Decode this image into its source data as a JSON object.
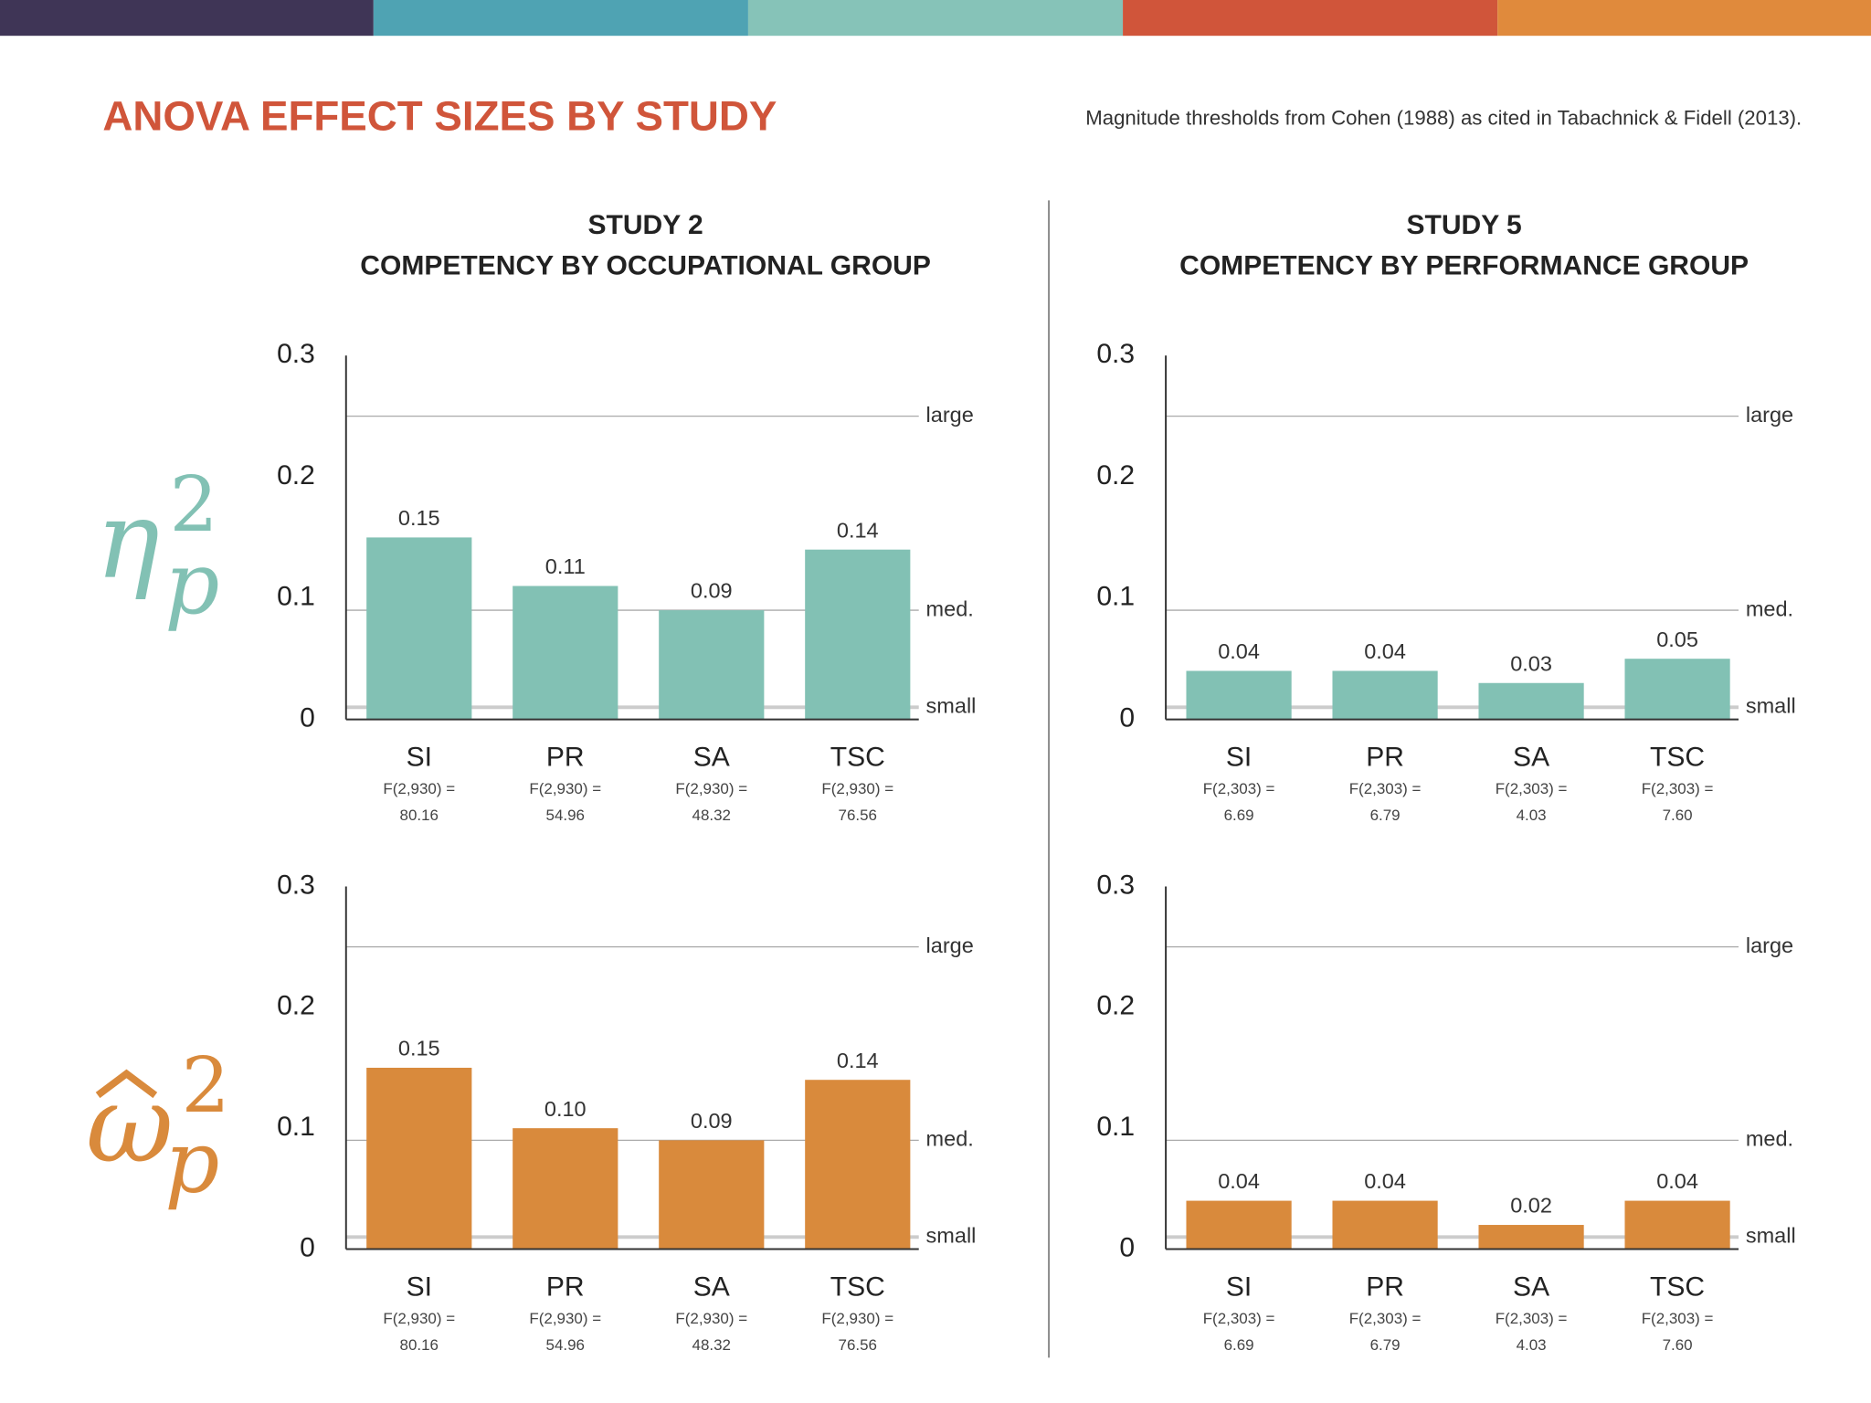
{
  "header": {
    "title": "ANOVA EFFECT SIZES BY STUDY",
    "note": "Magnitude thresholds from Cohen (1988) as cited in Tabachnick & Fidell (2013)."
  },
  "columns": [
    {
      "title": "STUDY 2",
      "subtitle": "COMPETENCY BY OCCUPATIONAL GROUP"
    },
    {
      "title": "STUDY 5",
      "subtitle": "COMPETENCY BY PERFORMANCE GROUP"
    }
  ],
  "rows": [
    {
      "symbol": "η",
      "subscript": "p",
      "superscript": "2",
      "color": "#82c1b4"
    },
    {
      "symbol": "ω",
      "subscript": "p",
      "superscript": "2",
      "color": "#d98a3c"
    }
  ],
  "chart_data": [
    {
      "type": "bar",
      "color": "#82c1b4",
      "categories": [
        "SI",
        "PR",
        "SA",
        "TSC"
      ],
      "category_notes": [
        [
          "F(2,930) =",
          "80.16"
        ],
        [
          "F(2,930) =",
          "54.96"
        ],
        [
          "F(2,930) =",
          "48.32"
        ],
        [
          "F(2,930) =",
          "76.56"
        ]
      ],
      "values": [
        0.15,
        0.11,
        0.09,
        0.14
      ],
      "value_labels": [
        "0.15",
        "0.11",
        "0.09",
        "0.14"
      ],
      "ylim": [
        0,
        0.3
      ],
      "yticks": [
        0,
        0.1,
        0.2,
        0.3
      ],
      "thresholds": [
        {
          "value": 0.25,
          "label": "large"
        },
        {
          "value": 0.09,
          "label": "med."
        },
        {
          "value": 0.01,
          "label": "small"
        }
      ]
    },
    {
      "type": "bar",
      "color": "#82c1b4",
      "categories": [
        "SI",
        "PR",
        "SA",
        "TSC"
      ],
      "category_notes": [
        [
          "F(2,303) =",
          "6.69"
        ],
        [
          "F(2,303) =",
          "6.79"
        ],
        [
          "F(2,303) =",
          "4.03"
        ],
        [
          "F(2,303) =",
          "7.60"
        ]
      ],
      "values": [
        0.04,
        0.04,
        0.03,
        0.05
      ],
      "value_labels": [
        "0.04",
        "0.04",
        "0.03",
        "0.05"
      ],
      "ylim": [
        0,
        0.3
      ],
      "yticks": [
        0,
        0.1,
        0.2,
        0.3
      ],
      "thresholds": [
        {
          "value": 0.25,
          "label": "large"
        },
        {
          "value": 0.09,
          "label": "med."
        },
        {
          "value": 0.01,
          "label": "small"
        }
      ]
    },
    {
      "type": "bar",
      "color": "#d98a3c",
      "categories": [
        "SI",
        "PR",
        "SA",
        "TSC"
      ],
      "category_notes": [
        [
          "F(2,930) =",
          "80.16"
        ],
        [
          "F(2,930) =",
          "54.96"
        ],
        [
          "F(2,930) =",
          "48.32"
        ],
        [
          "F(2,930) =",
          "76.56"
        ]
      ],
      "values": [
        0.15,
        0.1,
        0.09,
        0.14
      ],
      "value_labels": [
        "0.15",
        "0.10",
        "0.09",
        "0.14"
      ],
      "ylim": [
        0,
        0.3
      ],
      "yticks": [
        0,
        0.1,
        0.2,
        0.3
      ],
      "thresholds": [
        {
          "value": 0.25,
          "label": "large"
        },
        {
          "value": 0.09,
          "label": "med."
        },
        {
          "value": 0.01,
          "label": "small"
        }
      ]
    },
    {
      "type": "bar",
      "color": "#d98a3c",
      "categories": [
        "SI",
        "PR",
        "SA",
        "TSC"
      ],
      "category_notes": [
        [
          "F(2,303) =",
          "6.69"
        ],
        [
          "F(2,303) =",
          "6.79"
        ],
        [
          "F(2,303) =",
          "4.03"
        ],
        [
          "F(2,303) =",
          "7.60"
        ]
      ],
      "values": [
        0.04,
        0.04,
        0.02,
        0.04
      ],
      "value_labels": [
        "0.04",
        "0.04",
        "0.02",
        "0.04"
      ],
      "ylim": [
        0,
        0.3
      ],
      "yticks": [
        0,
        0.1,
        0.2,
        0.3
      ],
      "thresholds": [
        {
          "value": 0.25,
          "label": "large"
        },
        {
          "value": 0.09,
          "label": "med."
        },
        {
          "value": 0.01,
          "label": "small"
        }
      ]
    }
  ]
}
